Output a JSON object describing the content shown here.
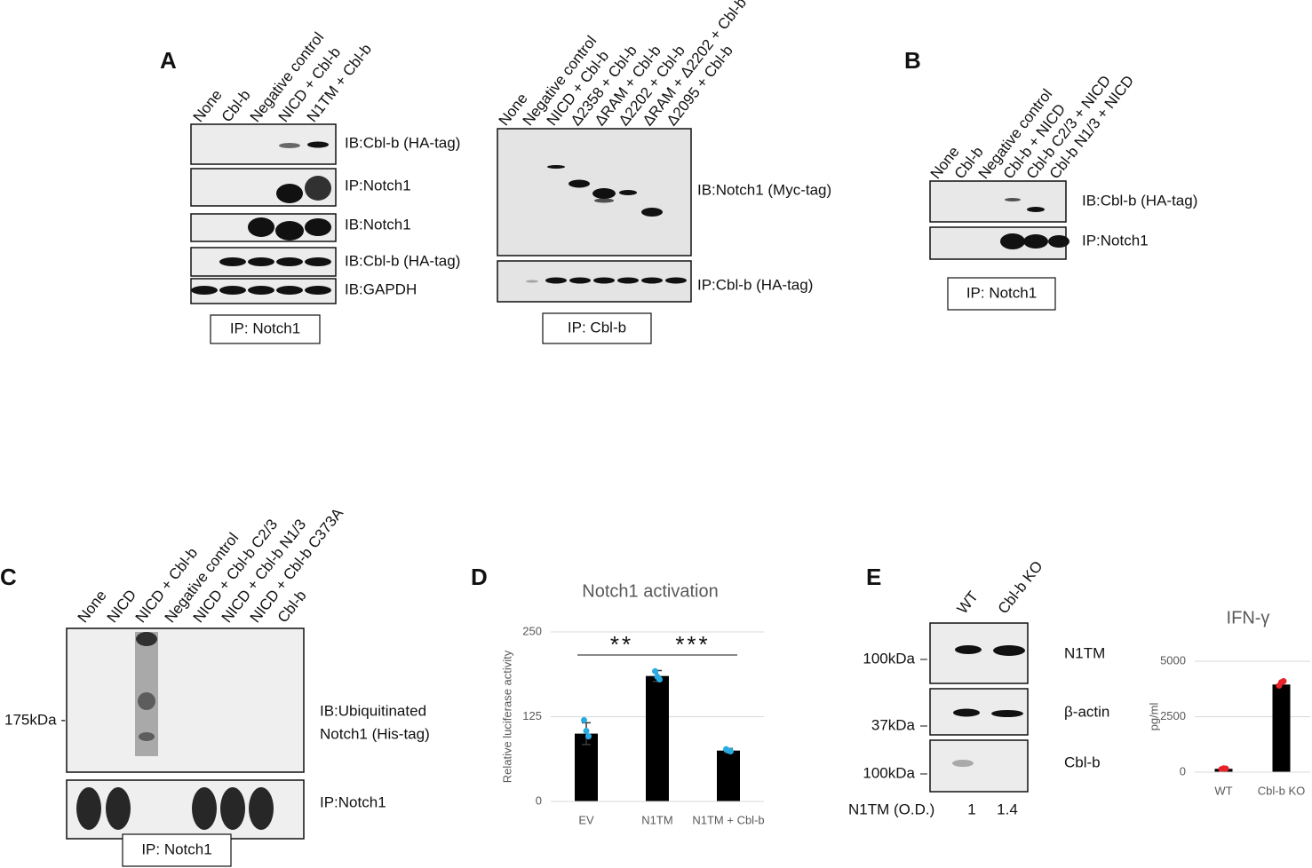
{
  "panels": {
    "A": {
      "label": "A",
      "blot1": {
        "lanes": [
          "None",
          "Cbl-b",
          "Negative control",
          "NICD + Cbl-b",
          "N1TM + Cbl-b"
        ],
        "bands": [
          "IB:Cbl-b (HA-tag)",
          "IP:Notch1",
          "IB:Notch1",
          "IB:Cbl-b (HA-tag)",
          "IB:GAPDH"
        ],
        "ip": "IP: Notch1"
      },
      "blot2": {
        "lanes": [
          "None",
          "Negative control",
          "NICD + Cbl-b",
          "Δ2358 + Cbl-b",
          "ΔRAM + Cbl-b",
          "Δ2202 + Cbl-b",
          "ΔRAM + Δ2202 + Cbl-b",
          "Δ2095 + Cbl-b"
        ],
        "bands": [
          "IB:Notch1 (Myc-tag)",
          "IP:Cbl-b (HA-tag)"
        ],
        "ip": "IP: Cbl-b"
      }
    },
    "B": {
      "label": "B",
      "lanes": [
        "None",
        "Cbl-b",
        "Negative control",
        "Cbl-b + NICD",
        "Cbl-b C2/3 + NICD",
        "Cbl-b N1/3 + NICD"
      ],
      "bands": [
        "IB:Cbl-b (HA-tag)",
        "IP:Notch1"
      ],
      "ip": "IP: Notch1"
    },
    "C": {
      "label": "C",
      "lanes": [
        "None",
        "NICD",
        "NICD + Cbl-b",
        "Negative control",
        "NICD + Cbl-b C2/3",
        "NICD + Cbl-b N1/3",
        "NICD + Cbl-b C373A",
        "Cbl-b"
      ],
      "bands": [
        "IB:Ubiquitinated",
        "Notch1 (His-tag)",
        "IP:Notch1"
      ],
      "marker": "175kDa -",
      "ip": "IP: Notch1"
    },
    "D": {
      "label": "D"
    },
    "E": {
      "label": "E",
      "lanes": [
        "WT",
        "Cbl-b KO"
      ],
      "bands": [
        "N1TM",
        "β-actin",
        "Cbl-b"
      ],
      "markers": [
        "100kDa",
        "37kDa",
        "100kDa"
      ],
      "od_label": "N1TM (O.D.)",
      "od_values": [
        1,
        1.4
      ]
    }
  },
  "chart_data": [
    {
      "type": "bar",
      "title": "Notch1 activation",
      "y_label": "Relative luciferase activity",
      "categories": [
        "EV",
        "N1TM",
        "N1TM + Cbl-b"
      ],
      "values": [
        100,
        185,
        75
      ],
      "errors": [
        16,
        8,
        3
      ],
      "points": [
        [
          120,
          104,
          96
        ],
        [
          192,
          184,
          180
        ],
        [
          77,
          75,
          74
        ]
      ],
      "color": "#000000",
      "error_color": "#3a3a3a",
      "point_color": "#29abe2",
      "ylim": [
        0,
        250
      ],
      "yticks": [
        0,
        125,
        250
      ],
      "grid": true,
      "annotations": [
        "**",
        "***"
      ]
    },
    {
      "type": "bar",
      "title": "IFN-γ",
      "y_label": "pg/ml",
      "categories": [
        "WT",
        "Cbl-b KO"
      ],
      "values": [
        150,
        3950
      ],
      "points": [
        [
          130,
          170,
          160
        ],
        [
          3900,
          4050,
          4100
        ]
      ],
      "color": "#000000",
      "point_color": "#e8222a",
      "ylim": [
        0,
        5000
      ],
      "yticks": [
        0,
        2500,
        5000
      ],
      "grid": true
    }
  ]
}
